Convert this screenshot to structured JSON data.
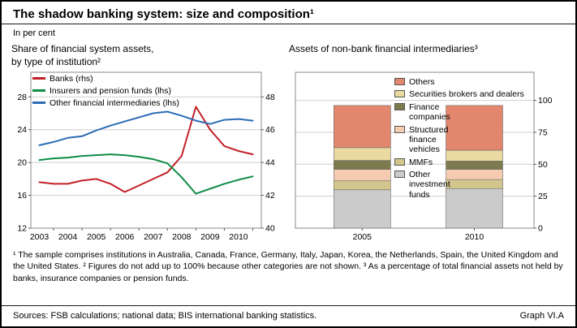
{
  "header": {
    "title": "The shadow banking system: size and composition¹",
    "subtitle": "In per cent"
  },
  "panels": {
    "left_title": "Share of financial system assets,\nby type of institution²",
    "right_title": "Assets of non-bank financial intermediaries³"
  },
  "chart_data": [
    {
      "type": "line",
      "title": "Share of financial system assets, by type of institution",
      "x": [
        2003,
        2003.5,
        2004,
        2004.5,
        2005,
        2005.5,
        2006,
        2006.5,
        2007,
        2007.5,
        2008,
        2008.5,
        2009,
        2009.5,
        2010,
        2010.5
      ],
      "x_range": [
        2002.7,
        2010.8
      ],
      "x_tick_positions": [
        2003,
        2004,
        2005,
        2006,
        2007,
        2008,
        2009,
        2010
      ],
      "x_tick_labels": [
        "2003",
        "2004",
        "2005",
        "2006",
        "2007",
        "2008",
        "2009",
        "2010"
      ],
      "axes": {
        "lhs": {
          "range": [
            12,
            31
          ],
          "ticks": [
            12,
            16,
            20,
            24,
            28
          ]
        },
        "rhs": {
          "range": [
            40,
            49.5
          ],
          "ticks": [
            40,
            42,
            44,
            46,
            48
          ]
        }
      },
      "grid": true,
      "legend_position": "top-left",
      "series": [
        {
          "name": "Banks (rhs)",
          "axis": "rhs",
          "color": "#c32026",
          "values": [
            42.8,
            42.7,
            42.7,
            42.9,
            43.0,
            42.7,
            42.2,
            42.6,
            43.0,
            43.4,
            44.4,
            47.4,
            46.0,
            45.0,
            44.7,
            44.5
          ]
        },
        {
          "name": "Insurers and pension funds (lhs)",
          "axis": "lhs",
          "color": "#0e8c47",
          "values": [
            20.3,
            20.5,
            20.6,
            20.8,
            20.9,
            21.0,
            20.9,
            20.7,
            20.4,
            19.9,
            18.2,
            16.2,
            16.8,
            17.4,
            17.9,
            18.3
          ]
        },
        {
          "name": "Other financial intermediaries (lhs)",
          "axis": "lhs",
          "color": "#2c6cb5",
          "values": [
            22.1,
            22.5,
            23.0,
            23.2,
            23.9,
            24.5,
            25.0,
            25.5,
            26.0,
            26.2,
            25.7,
            25.1,
            24.7,
            25.2,
            25.3,
            25.1
          ]
        }
      ]
    },
    {
      "type": "bar",
      "stacked": true,
      "title": "Assets of non-bank financial intermediaries",
      "categories": [
        "2005",
        "2010"
      ],
      "axis": {
        "side": "right",
        "range": [
          0,
          122
        ],
        "ticks": [
          0,
          25,
          50,
          75,
          100
        ]
      },
      "grid": true,
      "legend_order": "reversed",
      "series": [
        {
          "name": "Other investment funds",
          "color": "#cbcbcb",
          "values": [
            30,
            31
          ]
        },
        {
          "name": "MMFs",
          "color": "#d3c68c",
          "values": [
            7,
            7
          ]
        },
        {
          "name": "Structured finance vehicles",
          "color": "#f5cbb2",
          "values": [
            9,
            8
          ]
        },
        {
          "name": "Finance companies",
          "color": "#7c7b4f",
          "values": [
            7,
            6.5
          ]
        },
        {
          "name": "Securities brokers and dealers",
          "color": "#ead9a0",
          "values": [
            10,
            8.5
          ]
        },
        {
          "name": "Others",
          "color": "#e2876e",
          "values": [
            33,
            35
          ]
        }
      ]
    }
  ],
  "footnotes": "¹ The sample comprises institutions in Australia, Canada, France, Germany, Italy, Japan, Korea, the Netherlands, Spain, the United Kingdom and the United States.  ² Figures do not add up to 100% because other categories are not shown.  ³ As a percentage of total financial assets not held by banks, insurance companies or pension funds.",
  "footer": {
    "sources": "Sources: FSB calculations; national data; BIS international banking statistics.",
    "graph_label": "Graph VI.A"
  }
}
